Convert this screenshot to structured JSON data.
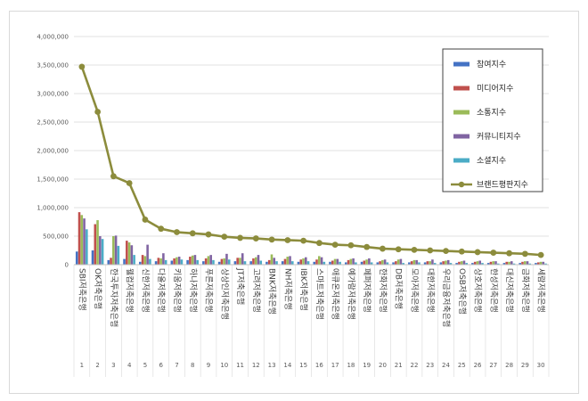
{
  "chart_data": {
    "type": "bar",
    "title": "",
    "xlabel": "",
    "ylabel": "",
    "ylim": [
      0,
      4000000
    ],
    "yticks": [
      0,
      500000,
      1000000,
      1500000,
      2000000,
      2500000,
      3000000,
      3500000,
      4000000
    ],
    "ytick_labels": [
      "0",
      "500,000",
      "1,000,000",
      "1,500,000",
      "2,000,000",
      "2,500,000",
      "3,000,000",
      "3,500,000",
      "4,000,000"
    ],
    "grid": true,
    "legend_position": "right",
    "categories": [
      "SBI저축은행",
      "OK저축은행",
      "한국투자저축은행",
      "웰컴저축은행",
      "신한저축은행",
      "다올저축은행",
      "키움저축은행",
      "하나저축은행",
      "푸른저축은행",
      "상상인저축은행",
      "JT저축은행",
      "고려저축은행",
      "BNK저축은행",
      "NH저축은행",
      "IBK저축은행",
      "스마트저축은행",
      "애큐온저축은행",
      "예가람저축은행",
      "페퍼저축은행",
      "한화저축은행",
      "DB저축은행",
      "모아저축은행",
      "대한저축은행",
      "우리금융저축은행",
      "OSB저축은행",
      "상호저축은행",
      "한성저축은행",
      "대신저축은행",
      "금화저축은행",
      "세람저축은행"
    ],
    "ranks": [
      "1",
      "2",
      "3",
      "4",
      "5",
      "6",
      "7",
      "8",
      "9",
      "10",
      "11",
      "12",
      "13",
      "14",
      "15",
      "16",
      "17",
      "18",
      "19",
      "20",
      "21",
      "22",
      "23",
      "24",
      "25",
      "26",
      "27",
      "28",
      "29",
      "30"
    ],
    "series": [
      {
        "name": "참여지수",
        "kind": "bar",
        "color": "#4472c4",
        "values": [
          230000,
          250000,
          80000,
          100000,
          50000,
          60000,
          70000,
          80000,
          60000,
          50000,
          60000,
          60000,
          50000,
          60000,
          50000,
          50000,
          50000,
          40000,
          50000,
          40000,
          40000,
          40000,
          40000,
          40000,
          30000,
          30000,
          30000,
          30000,
          30000,
          30000
        ]
      },
      {
        "name": "미디어지수",
        "kind": "bar",
        "color": "#c0504d",
        "values": [
          920000,
          710000,
          120000,
          420000,
          170000,
          120000,
          110000,
          140000,
          110000,
          100000,
          120000,
          110000,
          80000,
          100000,
          90000,
          90000,
          70000,
          80000,
          70000,
          60000,
          60000,
          60000,
          60000,
          60000,
          50000,
          50000,
          50000,
          50000,
          50000,
          40000
        ]
      },
      {
        "name": "소통지수",
        "kind": "bar",
        "color": "#9bbb59",
        "values": [
          870000,
          780000,
          500000,
          390000,
          150000,
          110000,
          130000,
          160000,
          150000,
          110000,
          120000,
          130000,
          180000,
          140000,
          110000,
          150000,
          100000,
          100000,
          90000,
          80000,
          90000,
          80000,
          60000,
          70000,
          60000,
          60000,
          60000,
          50000,
          60000,
          50000
        ]
      },
      {
        "name": "커뮤니티지수",
        "kind": "bar",
        "color": "#8064a2",
        "values": [
          810000,
          500000,
          510000,
          340000,
          350000,
          200000,
          140000,
          170000,
          170000,
          190000,
          200000,
          170000,
          120000,
          150000,
          130000,
          130000,
          100000,
          110000,
          110000,
          90000,
          100000,
          80000,
          90000,
          80000,
          70000,
          70000,
          60000,
          60000,
          60000,
          50000
        ]
      },
      {
        "name": "소셜지수",
        "kind": "bar",
        "color": "#4bacc6",
        "values": [
          620000,
          450000,
          330000,
          170000,
          100000,
          80000,
          90000,
          80000,
          80000,
          90000,
          60000,
          70000,
          60000,
          60000,
          60000,
          50000,
          50000,
          40000,
          40000,
          40000,
          30000,
          40000,
          30000,
          30000,
          30000,
          30000,
          20000,
          20000,
          20000,
          20000
        ]
      },
      {
        "name": "브랜드평판지수",
        "kind": "line",
        "color": "#8c8c3c",
        "values": [
          3470000,
          2680000,
          1550000,
          1430000,
          790000,
          630000,
          570000,
          550000,
          530000,
          490000,
          470000,
          460000,
          440000,
          430000,
          420000,
          380000,
          350000,
          340000,
          310000,
          280000,
          270000,
          260000,
          250000,
          240000,
          230000,
          220000,
          210000,
          200000,
          190000,
          170000
        ]
      }
    ]
  }
}
